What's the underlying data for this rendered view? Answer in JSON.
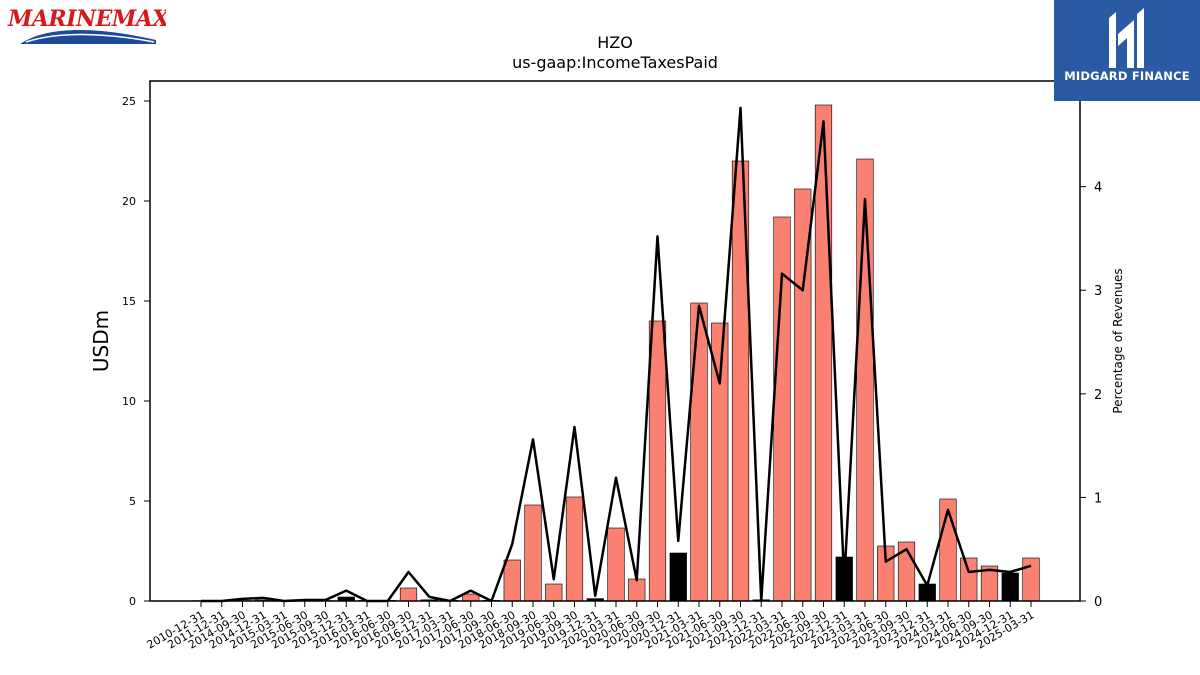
{
  "colors": {
    "bar_default": "#fa8072",
    "bar_negative_change": "#000000",
    "line": "#000000",
    "brand_blue": "#2b5aa5",
    "marinemax_red": "#d7191c",
    "marinemax_navy": "#1d4a9a"
  },
  "logos": {
    "left": {
      "icon": "marinemax-logo",
      "text": "MARINEMAX"
    },
    "right": {
      "icon": "midgard-finance-logo",
      "text": "MIDGARD FINANCE"
    }
  },
  "chart_data": {
    "type": "bar",
    "title": "HZO",
    "subtitle": "us-gaap:IncomeTaxesPaid",
    "ylabel": "USDm",
    "y2label": "Percentage of Revenues",
    "ylim": [
      0,
      26
    ],
    "y2lim": [
      0,
      5.02
    ],
    "yticks": [
      0,
      5,
      10,
      15,
      20,
      25
    ],
    "y2ticks": [
      0,
      1,
      2,
      3,
      4
    ],
    "grid": false,
    "categories": [
      "2010-12-31",
      "2011-12-31",
      "2014-09-30",
      "2014-12-31",
      "2015-03-31",
      "2015-06-30",
      "2015-09-30",
      "2015-12-31",
      "2016-03-31",
      "2016-06-30",
      "2016-09-30",
      "2016-12-31",
      "2017-03-31",
      "2017-06-30",
      "2017-09-30",
      "2018-06-30",
      "2018-09-30",
      "2019-06-30",
      "2019-09-30",
      "2019-12-31",
      "2020-03-31",
      "2020-06-30",
      "2020-09-30",
      "2020-12-31",
      "2021-03-31",
      "2021-06-30",
      "2021-09-30",
      "2021-12-31",
      "2022-03-31",
      "2022-06-30",
      "2022-09-30",
      "2022-12-31",
      "2023-03-31",
      "2023-06-30",
      "2023-09-30",
      "2023-12-31",
      "2024-03-31",
      "2024-06-30",
      "2024-09-30",
      "2024-12-31",
      "2025-03-31"
    ],
    "series": [
      {
        "kind": "bar",
        "values": [
          0.02,
          0.02,
          0.02,
          0.05,
          0.02,
          0.03,
          0.02,
          0.2,
          0.03,
          0.03,
          0.65,
          0.06,
          0.03,
          0.35,
          0.03,
          2.05,
          4.8,
          0.85,
          5.2,
          0.12,
          3.65,
          1.1,
          14.0,
          2.4,
          14.9,
          13.9,
          22.0,
          0.06,
          19.2,
          20.6,
          24.8,
          2.2,
          22.1,
          2.75,
          2.95,
          0.85,
          5.1,
          2.15,
          1.75,
          1.4,
          2.15
        ],
        "colors": [
          "#fa8072",
          "#fa8072",
          "#fa8072",
          "#fa8072",
          "#000000",
          "#fa8072",
          "#000000",
          "#000000",
          "#000000",
          "#fa8072",
          "#fa8072",
          "#000000",
          "#000000",
          "#fa8072",
          "#000000",
          "#fa8072",
          "#fa8072",
          "#fa8072",
          "#fa8072",
          "#000000",
          "#fa8072",
          "#fa8072",
          "#fa8072",
          "#000000",
          "#fa8072",
          "#fa8072",
          "#fa8072",
          "#000000",
          "#fa8072",
          "#fa8072",
          "#fa8072",
          "#000000",
          "#fa8072",
          "#fa8072",
          "#fa8072",
          "#000000",
          "#fa8072",
          "#fa8072",
          "#fa8072",
          "#000000",
          "#fa8072"
        ]
      },
      {
        "kind": "line",
        "axis": "right",
        "values": [
          0.0,
          0.0,
          0.02,
          0.03,
          0.0,
          0.01,
          0.01,
          0.1,
          0.0,
          0.0,
          0.28,
          0.04,
          0.0,
          0.1,
          0.0,
          0.55,
          1.56,
          0.21,
          1.68,
          0.05,
          1.19,
          0.2,
          3.52,
          0.58,
          2.85,
          2.1,
          4.76,
          0.0,
          3.16,
          3.0,
          4.63,
          0.2,
          3.88,
          0.38,
          0.5,
          0.15,
          0.88,
          0.28,
          0.3,
          0.28,
          0.34
        ]
      }
    ]
  }
}
